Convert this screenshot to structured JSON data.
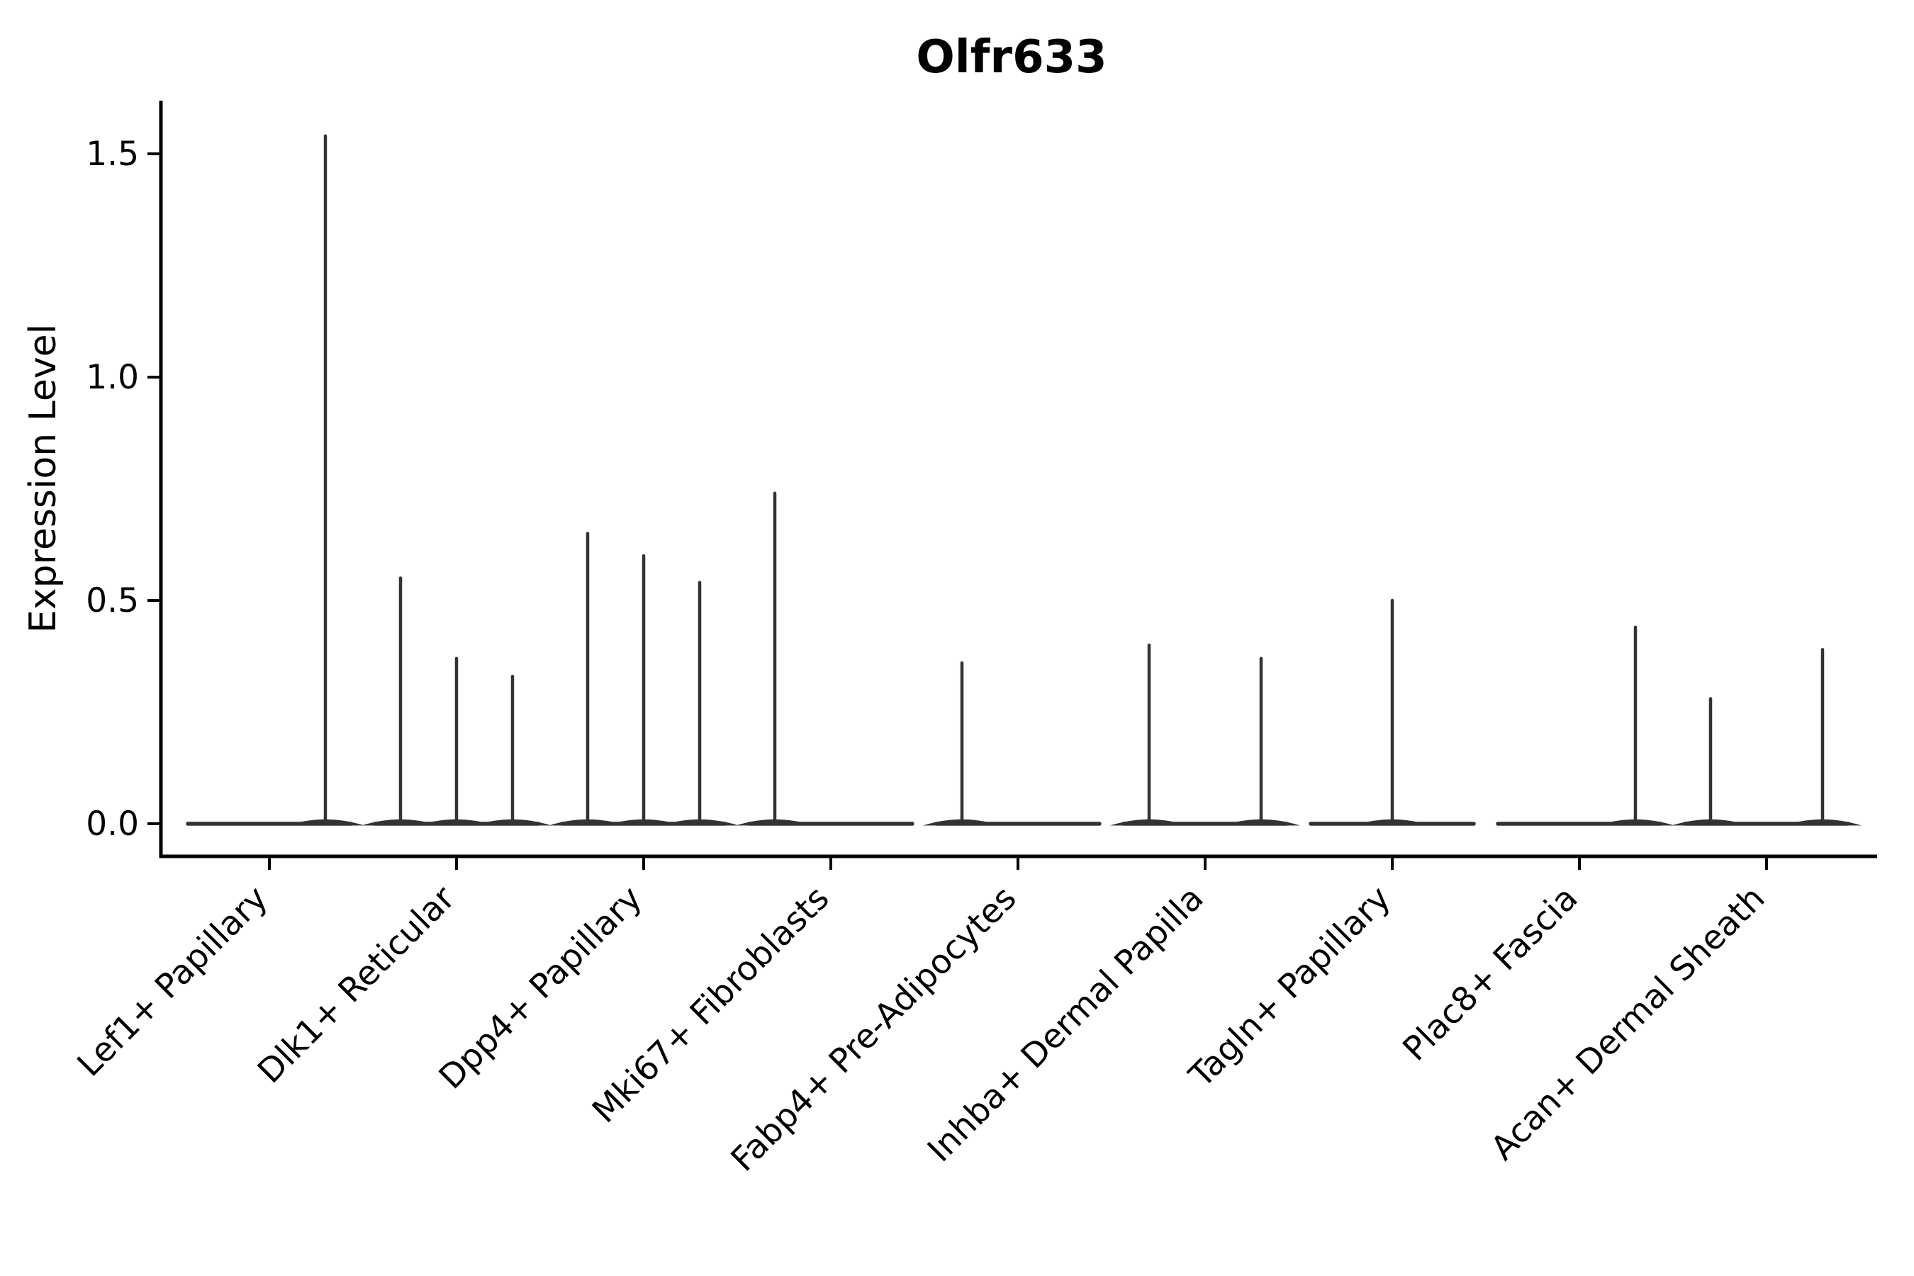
{
  "chart_data": {
    "type": "violin",
    "title": "Olfr633",
    "ylabel": "Expression Level",
    "xlabel": "",
    "ytick_labels": [
      "0.0",
      "0.5",
      "1.0",
      "1.5"
    ],
    "ytick_values": [
      0.0,
      0.5,
      1.0,
      1.5
    ],
    "ylim": [
      -0.07,
      1.62
    ],
    "grid": false,
    "legend": null,
    "violins_per_category": 3,
    "categories": [
      "Lef1+ Papillary",
      "Dlk1+ Reticular",
      "Dpp4+ Papillary",
      "Mki67+ Fibroblasts",
      "Fabp4+ Pre-Adipocytes",
      "Inhba+ Dermal Papilla",
      "Tagln+ Papillary",
      "Plac8+ Fascia",
      "Acan+ Dermal Sheath"
    ],
    "series": [
      {
        "category": "Lef1+ Papillary",
        "violin_max": [
          0,
          0,
          1.54
        ]
      },
      {
        "category": "Dlk1+ Reticular",
        "violin_max": [
          0.55,
          0.37,
          0.33
        ]
      },
      {
        "category": "Dpp4+ Papillary",
        "violin_max": [
          0.65,
          0.6,
          0.54
        ]
      },
      {
        "category": "Mki67+ Fibroblasts",
        "violin_max": [
          0.74,
          0,
          0
        ]
      },
      {
        "category": "Fabp4+ Pre-Adipocytes",
        "violin_max": [
          0.36,
          0,
          0
        ]
      },
      {
        "category": "Inhba+ Dermal Papilla",
        "violin_max": [
          0.4,
          0,
          0.37
        ]
      },
      {
        "category": "Tagln+ Papillary",
        "violin_max": [
          0,
          0.5,
          0
        ]
      },
      {
        "category": "Plac8+ Fascia",
        "violin_max": [
          0,
          0,
          0.44
        ]
      },
      {
        "category": "Acan+ Dermal Sheath",
        "violin_max": [
          0.28,
          0,
          0.39
        ]
      }
    ],
    "colors": {
      "line": "#333333",
      "axis": "#000000",
      "text": "#000000",
      "background": "#ffffff"
    }
  }
}
